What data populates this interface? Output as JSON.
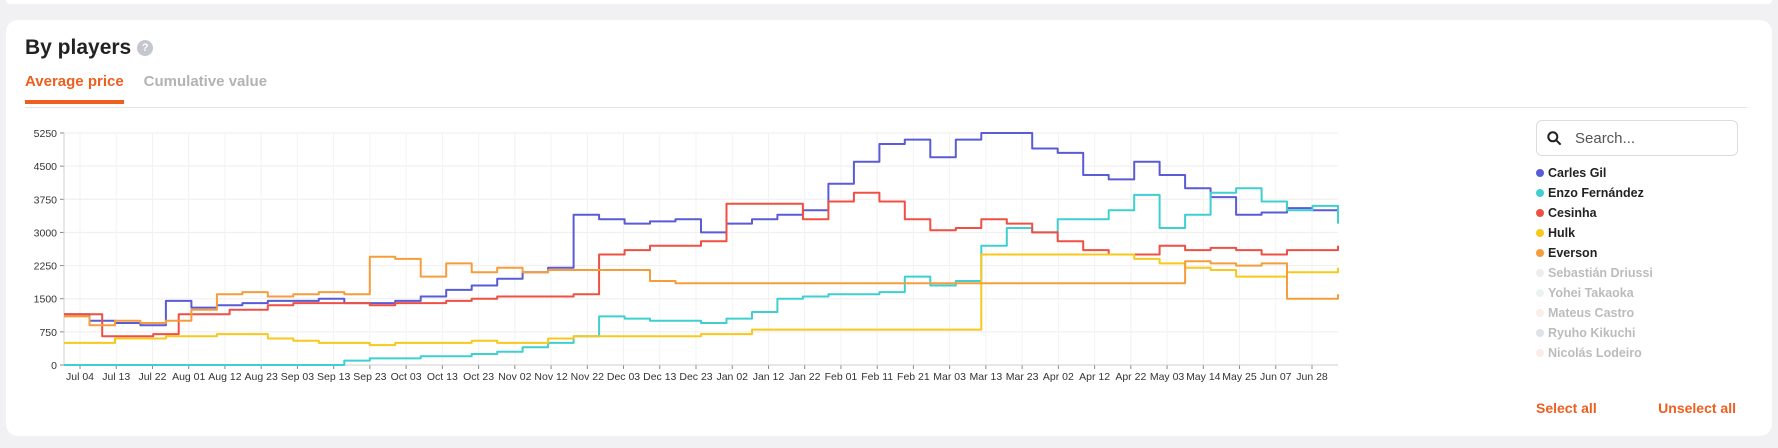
{
  "header": {
    "title": "By players",
    "help_icon": "question-icon"
  },
  "tabs": [
    {
      "label": "Average price",
      "active": true
    },
    {
      "label": "Cumulative value",
      "active": false
    }
  ],
  "search": {
    "placeholder": "Search...",
    "icon": "search-icon"
  },
  "actions": {
    "select_all": "Select all",
    "unselect_all": "Unselect all"
  },
  "colors": {
    "accent": "#ee5e1e"
  },
  "chart_data": {
    "type": "line",
    "title": "",
    "xlabel": "",
    "ylabel": "",
    "ylim": [
      0,
      5250
    ],
    "yticks": [
      0,
      750,
      1500,
      2250,
      3000,
      3750,
      4500,
      5250
    ],
    "ytick_labels": [
      "0",
      "750",
      "1500",
      "2250",
      "3000",
      "3750",
      "4500",
      "5250"
    ],
    "xticks": [
      "Jul 04",
      "Jul 13",
      "Jul 22",
      "Aug 01",
      "Aug 12",
      "Aug 23",
      "Sep 03",
      "Sep 13",
      "Sep 23",
      "Oct 03",
      "Oct 13",
      "Oct 23",
      "Nov 02",
      "Nov 12",
      "Nov 22",
      "Dec 03",
      "Dec 13",
      "Dec 23",
      "Jan 02",
      "Jan 12",
      "Jan 22",
      "Feb 01",
      "Feb 11",
      "Feb 21",
      "Mar 03",
      "Mar 13",
      "Mar 23",
      "Apr 02",
      "Apr 12",
      "Apr 22",
      "May 03",
      "May 14",
      "May 25",
      "Jun 07",
      "Jun 28"
    ],
    "grid": true,
    "legend": "right",
    "series": [
      {
        "name": "Carles Gil",
        "color": "#5a5bd6",
        "visible": true,
        "x": [
          0,
          2,
          4,
          6,
          8,
          10,
          12,
          14,
          16,
          18,
          20,
          22,
          24,
          26,
          28,
          30,
          32,
          34,
          36,
          38,
          40,
          42,
          44,
          46,
          48,
          50,
          52,
          54,
          56,
          58,
          60,
          62,
          64,
          66,
          68,
          70,
          72,
          74,
          76,
          78,
          80,
          82,
          84,
          86,
          88,
          90,
          92,
          94,
          96,
          98,
          100
        ],
        "y": [
          1150,
          1000,
          950,
          900,
          1450,
          1300,
          1350,
          1400,
          1450,
          1450,
          1500,
          1400,
          1400,
          1450,
          1550,
          1700,
          1800,
          1950,
          2100,
          2200,
          3400,
          3300,
          3200,
          3250,
          3300,
          3000,
          3200,
          3300,
          3400,
          3500,
          4100,
          4600,
          5000,
          5100,
          4700,
          5100,
          5250,
          5250,
          4900,
          4800,
          4300,
          4200,
          4600,
          4300,
          4000,
          3800,
          3400,
          3450,
          3550,
          3500,
          3550
        ]
      },
      {
        "name": "Enzo Fernández",
        "color": "#3fcfd0",
        "visible": true,
        "x": [
          0,
          10,
          16,
          18,
          20,
          22,
          24,
          26,
          28,
          30,
          32,
          34,
          36,
          38,
          40,
          42,
          44,
          46,
          48,
          50,
          52,
          54,
          56,
          58,
          60,
          62,
          64,
          66,
          68,
          70,
          72,
          74,
          76,
          78,
          80,
          82,
          84,
          86,
          88,
          90,
          92,
          94,
          96,
          98,
          100
        ],
        "y": [
          0,
          0,
          0,
          0,
          0,
          100,
          150,
          150,
          200,
          200,
          250,
          300,
          400,
          500,
          650,
          1100,
          1050,
          1000,
          1000,
          950,
          1050,
          1200,
          1500,
          1550,
          1600,
          1600,
          1650,
          2000,
          1800,
          1900,
          2700,
          3100,
          3000,
          3300,
          3300,
          3500,
          3850,
          3100,
          3400,
          3900,
          4000,
          3700,
          3500,
          3600,
          3200
        ]
      },
      {
        "name": "Cesinha",
        "color": "#ef5043",
        "visible": true,
        "x": [
          0,
          3,
          5,
          7,
          9,
          11,
          13,
          16,
          18,
          20,
          22,
          24,
          26,
          28,
          30,
          32,
          34,
          36,
          38,
          40,
          42,
          44,
          46,
          48,
          50,
          52,
          54,
          56,
          58,
          60,
          62,
          64,
          66,
          68,
          70,
          72,
          74,
          76,
          78,
          80,
          82,
          84,
          86,
          88,
          90,
          92,
          94,
          96,
          98,
          100
        ],
        "y": [
          1150,
          650,
          650,
          700,
          1150,
          1150,
          1250,
          1350,
          1400,
          1400,
          1400,
          1350,
          1400,
          1400,
          1450,
          1500,
          1550,
          1550,
          1550,
          1600,
          2500,
          2600,
          2700,
          2700,
          2800,
          3650,
          3650,
          3650,
          3300,
          3700,
          3900,
          3700,
          3300,
          3050,
          3100,
          3300,
          3200,
          3000,
          2800,
          2600,
          2500,
          2500,
          2700,
          2600,
          2650,
          2600,
          2500,
          2600,
          2600,
          2700
        ]
      },
      {
        "name": "Hulk",
        "color": "#f8c81c",
        "visible": true,
        "x": [
          0,
          4,
          8,
          12,
          14,
          16,
          18,
          20,
          22,
          24,
          26,
          28,
          30,
          32,
          34,
          36,
          38,
          40,
          42,
          44,
          46,
          48,
          50,
          52,
          54,
          56,
          58,
          60,
          62,
          64,
          66,
          68,
          70,
          72,
          74,
          76,
          78,
          80,
          82,
          84,
          86,
          88,
          90,
          92,
          94,
          96,
          98,
          100
        ],
        "y": [
          500,
          600,
          650,
          700,
          700,
          600,
          550,
          500,
          500,
          450,
          500,
          500,
          500,
          550,
          500,
          500,
          600,
          650,
          650,
          650,
          650,
          650,
          700,
          700,
          800,
          800,
          800,
          800,
          800,
          800,
          800,
          800,
          800,
          2500,
          2500,
          2500,
          2500,
          2500,
          2500,
          2400,
          2300,
          2200,
          2150,
          2000,
          2000,
          2100,
          2100,
          2200
        ]
      },
      {
        "name": "Everson",
        "color": "#f59d3d",
        "visible": true,
        "x": [
          0,
          2,
          4,
          6,
          8,
          10,
          12,
          14,
          16,
          18,
          20,
          22,
          24,
          26,
          28,
          30,
          32,
          34,
          36,
          38,
          40,
          42,
          44,
          46,
          48,
          50,
          52,
          54,
          56,
          58,
          60,
          62,
          64,
          66,
          68,
          70,
          72,
          74,
          76,
          78,
          80,
          82,
          84,
          86,
          88,
          90,
          92,
          94,
          96,
          98,
          100
        ],
        "y": [
          1100,
          900,
          1000,
          950,
          1000,
          1250,
          1600,
          1650,
          1550,
          1600,
          1650,
          1600,
          2450,
          2400,
          2000,
          2300,
          2100,
          2200,
          2100,
          2150,
          2150,
          2150,
          2150,
          1900,
          1850,
          1850,
          1850,
          1850,
          1850,
          1850,
          1850,
          1850,
          1850,
          1850,
          1850,
          1850,
          1850,
          1850,
          1850,
          1850,
          1850,
          1850,
          1850,
          1850,
          2350,
          2300,
          2250,
          2300,
          1500,
          1500,
          1600
        ]
      },
      {
        "name": "Sebastián Driussi",
        "color": "#c6c6c6",
        "visible": false
      },
      {
        "name": "Yohei Takaoka",
        "color": "#b7d8d0",
        "visible": false
      },
      {
        "name": "Mateus Castro",
        "color": "#f2c8b9",
        "visible": false
      },
      {
        "name": "Ryuho Kikuchi",
        "color": "#97a3ad",
        "visible": false
      },
      {
        "name": "Nicolás Lodeiro",
        "color": "#f3c3bc",
        "visible": false
      }
    ]
  }
}
